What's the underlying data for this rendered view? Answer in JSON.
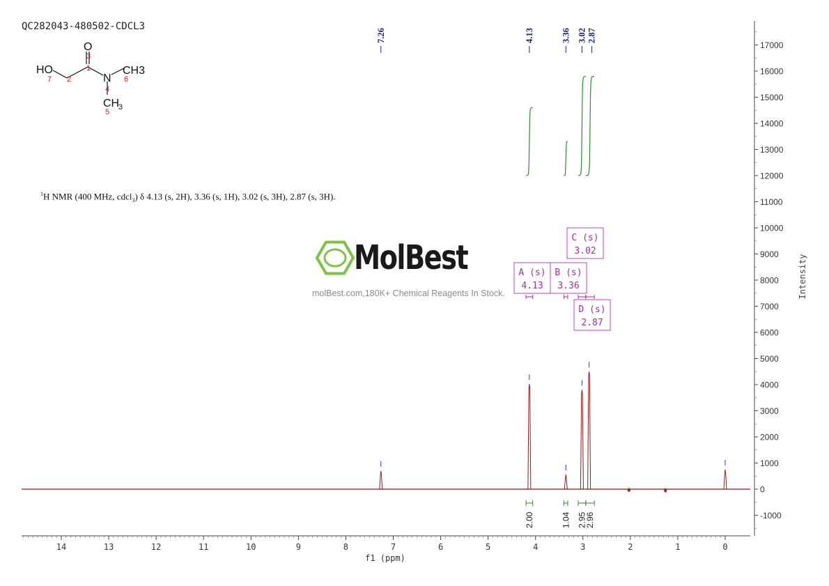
{
  "sample_id": "QC282043-480502-CDCL3",
  "watermark": {
    "brand": "MolBest",
    "tagline": "molBest.com,180K+ Chemical Reagents In Stock."
  },
  "nmr_summary": {
    "nucleus_mass": "1",
    "text": "H NMR (400 MHz, cdcl",
    "sub": "3",
    "rest": ") δ 4.13 (s, 2H), 3.36 (s, 1H), 3.02 (s, 3H), 2.87 (s, 3H)."
  },
  "structure": {
    "atoms": [
      "HO",
      "O",
      "N",
      "CH3",
      "CH",
      "3"
    ],
    "numbers": [
      "1",
      "2",
      "3",
      "4",
      "5",
      "6",
      "7"
    ]
  },
  "colors": {
    "spectrum": "#8b1a1a",
    "integral": "#2e8b2e",
    "peak_label": "#1a237e",
    "multiplet_box": "#c040c0",
    "logo_green": "#7cc243"
  },
  "chart_data": {
    "type": "line",
    "xlabel": "f1 (ppm)",
    "ylabel": "Intensity",
    "xlim": [
      14.8,
      -0.5
    ],
    "ylim": [
      -1700,
      17800
    ],
    "x_ticks": [
      14,
      13,
      12,
      11,
      10,
      9,
      8,
      7,
      6,
      5,
      4,
      3,
      2,
      1,
      0
    ],
    "y_ticks": [
      -1000,
      0,
      1000,
      2000,
      3000,
      4000,
      5000,
      6000,
      7000,
      8000,
      9000,
      10000,
      11000,
      12000,
      13000,
      14000,
      15000,
      16000,
      17000
    ],
    "peaks": [
      {
        "ppm": 7.26,
        "height": 700
      },
      {
        "ppm": 4.13,
        "height": 4020
      },
      {
        "ppm": 3.36,
        "height": 560
      },
      {
        "ppm": 3.02,
        "height": 3800
      },
      {
        "ppm": 2.87,
        "height": 4500
      },
      {
        "ppm": 2.03,
        "height": 60
      },
      {
        "ppm": 1.26,
        "height": 40
      },
      {
        "ppm": 0.0,
        "height": 750
      }
    ],
    "peak_labels": [
      "7.26",
      "4.13",
      "3.36",
      "3.02",
      "2.87"
    ],
    "integrals": [
      {
        "from": 4.2,
        "to": 4.06,
        "value": "2.00",
        "bottom": 12000,
        "top": 14600
      },
      {
        "from": 3.4,
        "to": 3.32,
        "value": "1.04",
        "bottom": 12000,
        "top": 13300
      },
      {
        "from": 3.1,
        "to": 2.94,
        "value": "2.95",
        "bottom": 12000,
        "top": 15800
      },
      {
        "from": 2.94,
        "to": 2.76,
        "value": "2.96",
        "bottom": 12000,
        "top": 15800
      }
    ],
    "multiplets": [
      {
        "label": "A (s)",
        "shift": "4.13"
      },
      {
        "label": "B (s)",
        "shift": "3.36"
      },
      {
        "label": "C (s)",
        "shift": "3.02"
      },
      {
        "label": "D (s)",
        "shift": "2.87"
      }
    ]
  }
}
